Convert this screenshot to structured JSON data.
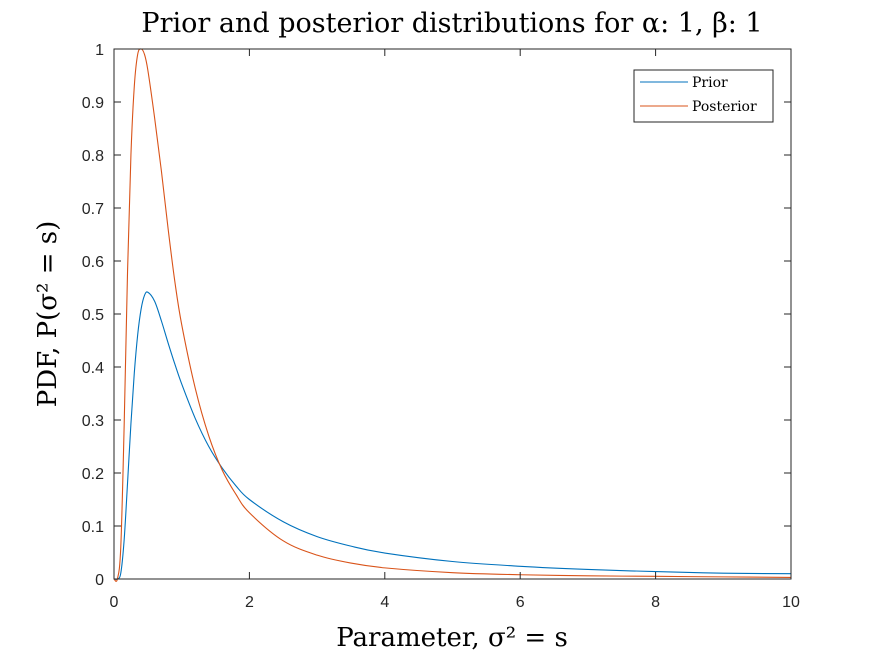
{
  "chart_data": {
    "type": "line",
    "title": "Prior and posterior distributions for α: 1, β: 1",
    "xlabel": "Parameter, σ² = s",
    "ylabel": "PDF, P(σ² = s)",
    "xlim": [
      0,
      10
    ],
    "ylim": [
      0,
      1
    ],
    "xticks": [
      0,
      2,
      4,
      6,
      8,
      10
    ],
    "yticks": [
      0,
      0.1,
      0.2,
      0.3,
      0.4,
      0.5,
      0.6,
      0.7,
      0.8,
      0.9,
      1
    ],
    "xtick_labels": [
      "0",
      "2",
      "4",
      "6",
      "8",
      "10"
    ],
    "ytick_labels": [
      "0",
      "0.1",
      "0.2",
      "0.3",
      "0.4",
      "0.5",
      "0.6",
      "0.7",
      "0.8",
      "0.9",
      "1"
    ],
    "grid": false,
    "legend_position": "top-right",
    "series": [
      {
        "name": "Prior",
        "color": "#0072BD",
        "x": [
          0,
          0.05,
          0.1,
          0.15,
          0.2,
          0.25,
          0.3,
          0.35,
          0.4,
          0.45,
          0.5,
          0.6,
          0.7,
          0.8,
          0.9,
          1.0,
          1.2,
          1.4,
          1.6,
          1.8,
          2.0,
          2.5,
          3.0,
          3.5,
          4.0,
          5.0,
          6.0,
          7.0,
          8.0,
          9.0,
          10.0
        ],
        "y": [
          0,
          0.0,
          0.011,
          0.074,
          0.181,
          0.293,
          0.389,
          0.461,
          0.509,
          0.535,
          0.541,
          0.524,
          0.487,
          0.445,
          0.405,
          0.368,
          0.303,
          0.25,
          0.209,
          0.176,
          0.15,
          0.108,
          0.08,
          0.062,
          0.049,
          0.033,
          0.024,
          0.018,
          0.014,
          0.011,
          0.01
        ]
      },
      {
        "name": "Posterior",
        "color": "#D95319",
        "x": [
          0,
          0.05,
          0.1,
          0.15,
          0.2,
          0.25,
          0.3,
          0.35,
          0.4,
          0.45,
          0.5,
          0.6,
          0.7,
          0.8,
          0.9,
          1.0,
          1.2,
          1.4,
          1.6,
          1.8,
          2.0,
          2.5,
          3.0,
          3.5,
          4.0,
          5.0,
          6.0,
          7.0,
          8.0,
          9.0,
          10.0
        ],
        "y": [
          0,
          0.0,
          0.06,
          0.29,
          0.58,
          0.8,
          0.93,
          0.99,
          1.0,
          0.99,
          0.96,
          0.87,
          0.77,
          0.66,
          0.56,
          0.48,
          0.36,
          0.27,
          0.205,
          0.16,
          0.125,
          0.072,
          0.045,
          0.03,
          0.021,
          0.012,
          0.008,
          0.006,
          0.005,
          0.004,
          0.003
        ]
      }
    ]
  }
}
